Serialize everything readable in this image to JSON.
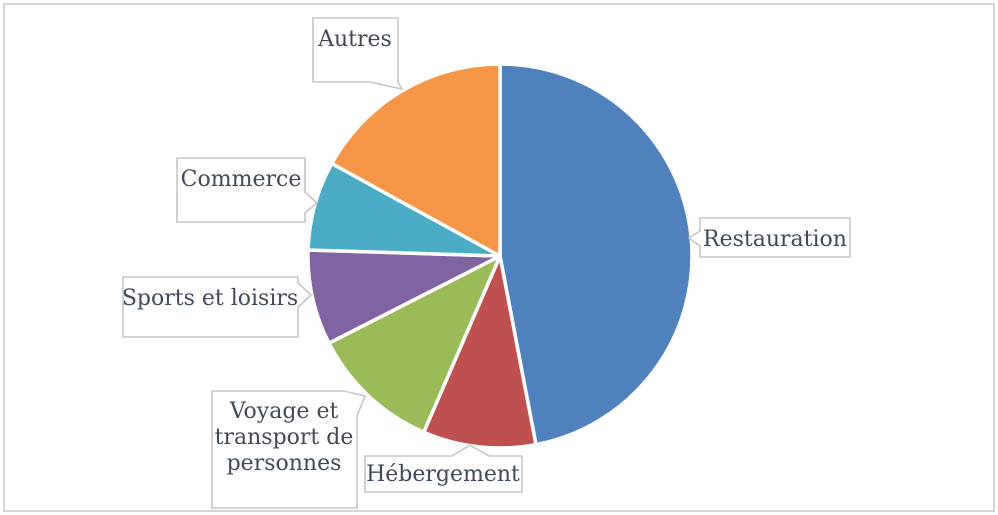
{
  "chart_data": {
    "type": "pie",
    "title": "",
    "categories": [
      "Restauration",
      "Hébergement",
      "Voyage et transport de personnes",
      "Sports et loisirs",
      "Commerce",
      "Autres"
    ],
    "values": [
      47,
      9.5,
      11,
      8,
      7.5,
      17
    ],
    "unit": "%",
    "slice_ids": [
      "restauration",
      "hebergement",
      "voyage-et-transport-de-personnes",
      "sports-et-loisirs",
      "commerce",
      "autres"
    ],
    "colors": [
      "#4F81BD",
      "#C0504D",
      "#9BBB59",
      "#8064A2",
      "#4BACC6",
      "#F79646"
    ],
    "start_at": "12-oclock",
    "direction": "clockwise",
    "slice_separator_color": "#FFFFFF",
    "legend_position": "none",
    "label_style": "callout-boxes",
    "label_text_color": "#3F4A56",
    "label_border_color": "#C6C6C6",
    "chart_border_color": "#D5D5D5"
  },
  "callouts": [
    {
      "id": "restauration",
      "lines": [
        "Restauration"
      ]
    },
    {
      "id": "hebergement",
      "lines": [
        "Hébergement"
      ]
    },
    {
      "id": "voyage",
      "lines": [
        "Voyage et",
        "transport de",
        "personnes"
      ]
    },
    {
      "id": "sports",
      "lines": [
        "Sports et loisirs"
      ]
    },
    {
      "id": "commerce",
      "lines": [
        "Commerce"
      ]
    },
    {
      "id": "autres",
      "lines": [
        "Autres"
      ]
    }
  ]
}
